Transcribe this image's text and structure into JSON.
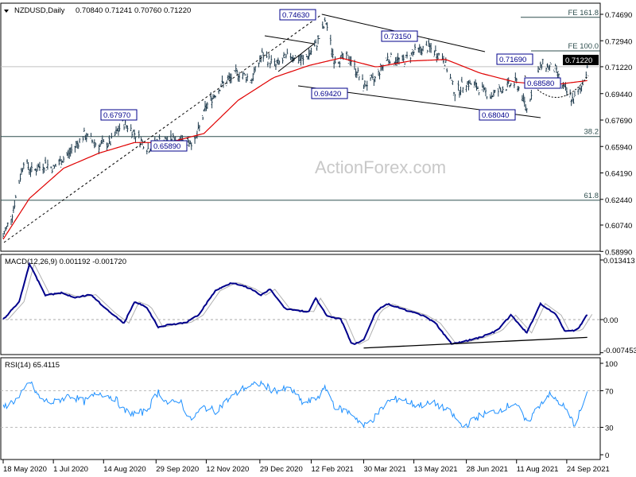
{
  "header": {
    "symbol": "NZDUSD,Daily",
    "ohlc": "0.70840 0.71241 0.70760 0.71220"
  },
  "watermark": "ActionForex.com",
  "chart_data": [
    {
      "type": "ohlc",
      "title": "NZDUSD,Daily",
      "open": 0.7084,
      "high": 0.71241,
      "low": 0.7076,
      "close": [
        [
          "2020-05-18",
          0.6
        ],
        [
          "2020-05-26",
          0.615
        ],
        [
          "2020-06-05",
          0.65
        ],
        [
          "2020-06-12",
          0.643
        ],
        [
          "2020-06-24",
          0.648
        ],
        [
          "2020-07-01",
          0.645
        ],
        [
          "2020-07-15",
          0.655
        ],
        [
          "2020-07-28",
          0.667
        ],
        [
          "2020-08-10",
          0.66
        ],
        [
          "2020-08-20",
          0.662
        ],
        [
          "2020-08-31",
          0.675
        ],
        [
          "2020-09-07",
          0.671
        ],
        [
          "2020-09-22",
          0.658
        ],
        [
          "2020-10-02",
          0.663
        ],
        [
          "2020-10-20",
          0.665
        ],
        [
          "2020-11-02",
          0.662
        ],
        [
          "2020-11-12",
          0.686
        ],
        [
          "2020-11-25",
          0.7
        ],
        [
          "2020-12-10",
          0.708
        ],
        [
          "2020-12-22",
          0.704
        ],
        [
          "2020-12-31",
          0.72
        ],
        [
          "2021-01-12",
          0.713
        ],
        [
          "2021-01-25",
          0.72
        ],
        [
          "2021-02-05",
          0.716
        ],
        [
          "2021-02-16",
          0.726
        ],
        [
          "2021-02-25",
          0.742
        ],
        [
          "2021-03-04",
          0.717
        ],
        [
          "2021-03-18",
          0.718
        ],
        [
          "2021-03-30",
          0.7
        ],
        [
          "2021-04-08",
          0.703
        ],
        [
          "2021-04-20",
          0.718
        ],
        [
          "2021-05-04",
          0.716
        ],
        [
          "2021-05-13",
          0.722
        ],
        [
          "2021-05-26",
          0.725
        ],
        [
          "2021-06-08",
          0.718
        ],
        [
          "2021-06-18",
          0.695
        ],
        [
          "2021-06-28",
          0.702
        ],
        [
          "2021-07-09",
          0.698
        ],
        [
          "2021-07-20",
          0.693
        ],
        [
          "2021-07-30",
          0.698
        ],
        [
          "2021-08-11",
          0.702
        ],
        [
          "2021-08-20",
          0.684
        ],
        [
          "2021-08-27",
          0.704
        ],
        [
          "2021-09-03",
          0.714
        ],
        [
          "2021-09-14",
          0.71
        ],
        [
          "2021-09-22",
          0.697
        ],
        [
          "2021-09-30",
          0.69
        ],
        [
          "2021-10-06",
          0.697
        ],
        [
          "2021-10-12",
          0.7122
        ]
      ],
      "ylim": [
        0.5899,
        0.7469
      ],
      "y_ticks": [
        "0.74690",
        "0.72940",
        "0.71220",
        "0.69440",
        "0.67690",
        "0.65940",
        "0.64190",
        "0.62440",
        "0.60740",
        "0.58990"
      ],
      "y_tick_values": [
        0.7469,
        0.7294,
        0.7122,
        0.6944,
        0.6769,
        0.6594,
        0.6419,
        0.6244,
        0.6074,
        0.5899
      ],
      "current_price_label": "0.71220",
      "x_ticks": [
        "18 May 2020",
        "1 Jul 2020",
        "14 Aug 2020",
        "29 Sep 2020",
        "12 Nov 2020",
        "29 Dec 2020",
        "12 Feb 2021",
        "30 Mar 2021",
        "13 May 2021",
        "28 Jun 2021",
        "11 Aug 2021",
        "24 Sep 2021"
      ],
      "x_tick_dates": [
        "2020-05-18",
        "2020-07-01",
        "2020-08-14",
        "2020-09-29",
        "2020-11-12",
        "2020-12-29",
        "2021-02-12",
        "2021-03-30",
        "2021-05-13",
        "2021-06-28",
        "2021-08-11",
        "2021-09-24"
      ],
      "moving_average": [
        [
          "2020-05-18",
          0.598
        ],
        [
          "2020-06-10",
          0.625
        ],
        [
          "2020-07-10",
          0.645
        ],
        [
          "2020-08-10",
          0.655
        ],
        [
          "2020-09-10",
          0.662
        ],
        [
          "2020-10-10",
          0.662
        ],
        [
          "2020-11-10",
          0.668
        ],
        [
          "2020-12-10",
          0.69
        ],
        [
          "2021-01-10",
          0.705
        ],
        [
          "2021-02-10",
          0.713
        ],
        [
          "2021-03-10",
          0.718
        ],
        [
          "2021-04-10",
          0.712
        ],
        [
          "2021-05-10",
          0.716
        ],
        [
          "2021-06-10",
          0.717
        ],
        [
          "2021-07-10",
          0.708
        ],
        [
          "2021-08-10",
          0.702
        ],
        [
          "2021-09-10",
          0.7
        ],
        [
          "2021-10-12",
          0.703
        ]
      ],
      "annotations": [
        {
          "label": "0.74630",
          "date": "2021-02-25",
          "value": 0.7463
        },
        {
          "label": "0.73150",
          "date": "2021-05-26",
          "value": 0.7315
        },
        {
          "label": "0.71690",
          "date": "2021-09-02",
          "value": 0.7169
        },
        {
          "label": "0.69420",
          "date": "2021-03-30",
          "value": 0.6942
        },
        {
          "label": "0.68040",
          "date": "2021-08-20",
          "value": 0.6804
        },
        {
          "label": "0.68580",
          "date": "2021-09-30",
          "value": 0.6858
        },
        {
          "label": "0.67970",
          "date": "2020-08-31",
          "value": 0.6797
        },
        {
          "label": "0.65890",
          "date": "2020-09-25",
          "value": 0.6589
        }
      ],
      "levels": [
        {
          "label": "FE 161.8",
          "value": 0.7449
        },
        {
          "label": "FE 100.0",
          "value": 0.7227
        },
        {
          "label": "38.2",
          "value": 0.666
        },
        {
          "label": "61.8",
          "value": 0.6238
        }
      ]
    },
    {
      "type": "line",
      "title": "MACD(12,26,9) 0.001192 -0.001720",
      "ylim": [
        -0.007453,
        0.013413
      ],
      "y_ticks": [
        "0.013413",
        "0.00",
        "-0.007453"
      ],
      "y_tick_values": [
        0.013413,
        0,
        -0.007453
      ],
      "macd": [
        [
          "2020-05-18",
          0
        ],
        [
          "2020-06-01",
          0.004
        ],
        [
          "2020-06-10",
          0.0125
        ],
        [
          "2020-06-24",
          0.0055
        ],
        [
          "2020-07-08",
          0.006
        ],
        [
          "2020-07-20",
          0.005
        ],
        [
          "2020-08-03",
          0.0056
        ],
        [
          "2020-08-20",
          0.0015
        ],
        [
          "2020-09-01",
          -0.0008
        ],
        [
          "2020-09-10",
          0.004
        ],
        [
          "2020-09-20",
          0.003
        ],
        [
          "2020-10-01",
          -0.0017
        ],
        [
          "2020-10-10",
          -0.0012
        ],
        [
          "2020-10-25",
          -0.0007
        ],
        [
          "2020-11-05",
          0.001
        ],
        [
          "2020-11-20",
          0.0065
        ],
        [
          "2020-12-05",
          0.0084
        ],
        [
          "2020-12-20",
          0.007
        ],
        [
          "2020-12-30",
          0.0055
        ],
        [
          "2021-01-07",
          0.0068
        ],
        [
          "2021-01-20",
          0.0025
        ],
        [
          "2021-02-01",
          0.002
        ],
        [
          "2021-02-10",
          0.0018
        ],
        [
          "2021-02-16",
          0.0048
        ],
        [
          "2021-02-26",
          0.0007
        ],
        [
          "2021-03-10",
          0.0001
        ],
        [
          "2021-03-20",
          -0.0058
        ],
        [
          "2021-03-30",
          -0.0045
        ],
        [
          "2021-04-10",
          0.002
        ],
        [
          "2021-04-20",
          0.0035
        ],
        [
          "2021-05-05",
          0.0022
        ],
        [
          "2021-05-20",
          0.001
        ],
        [
          "2021-06-01",
          -0.0008
        ],
        [
          "2021-06-15",
          -0.0055
        ],
        [
          "2021-06-25",
          -0.005
        ],
        [
          "2021-07-10",
          -0.004
        ],
        [
          "2021-07-25",
          -0.0025
        ],
        [
          "2021-08-06",
          0.001
        ],
        [
          "2021-08-20",
          -0.003
        ],
        [
          "2021-09-01",
          0.0036
        ],
        [
          "2021-09-15",
          0.001
        ],
        [
          "2021-09-22",
          -0.0025
        ],
        [
          "2021-10-03",
          -0.0025
        ],
        [
          "2021-10-12",
          0.001192
        ]
      ],
      "signal": "-0.001720",
      "trendline": [
        [
          "2021-03-30",
          -0.0064
        ],
        [
          "2021-10-12",
          -0.004
        ]
      ]
    },
    {
      "type": "line",
      "title": "RSI(14) 65.4115",
      "ylim": [
        0,
        100
      ],
      "y_ticks": [
        "100",
        "70",
        "30",
        "0"
      ],
      "y_tick_values": [
        100,
        70,
        30,
        0
      ],
      "rsi": [
        [
          "2020-05-18",
          52
        ],
        [
          "2020-06-01",
          62
        ],
        [
          "2020-06-10",
          80
        ],
        [
          "2020-06-20",
          60
        ],
        [
          "2020-07-01",
          57
        ],
        [
          "2020-07-15",
          65
        ],
        [
          "2020-07-28",
          58
        ],
        [
          "2020-08-10",
          68
        ],
        [
          "2020-08-24",
          62
        ],
        [
          "2020-09-01",
          48
        ],
        [
          "2020-09-10",
          45
        ],
        [
          "2020-09-20",
          47
        ],
        [
          "2020-10-01",
          69
        ],
        [
          "2020-10-10",
          55
        ],
        [
          "2020-10-20",
          60
        ],
        [
          "2020-10-29",
          38
        ],
        [
          "2020-11-10",
          52
        ],
        [
          "2020-11-20",
          48
        ],
        [
          "2020-12-01",
          60
        ],
        [
          "2020-12-15",
          73
        ],
        [
          "2020-12-30",
          78
        ],
        [
          "2021-01-10",
          70
        ],
        [
          "2021-01-25",
          72
        ],
        [
          "2021-02-05",
          56
        ],
        [
          "2021-02-15",
          60
        ],
        [
          "2021-02-25",
          73
        ],
        [
          "2021-03-05",
          52
        ],
        [
          "2021-03-20",
          45
        ],
        [
          "2021-03-30",
          31
        ],
        [
          "2021-04-08",
          40
        ],
        [
          "2021-04-20",
          58
        ],
        [
          "2021-05-01",
          62
        ],
        [
          "2021-05-15",
          54
        ],
        [
          "2021-06-01",
          56
        ],
        [
          "2021-06-15",
          45
        ],
        [
          "2021-06-25",
          30
        ],
        [
          "2021-07-10",
          43
        ],
        [
          "2021-07-25",
          48
        ],
        [
          "2021-08-10",
          57
        ],
        [
          "2021-08-20",
          34
        ],
        [
          "2021-08-30",
          53
        ],
        [
          "2021-09-08",
          66
        ],
        [
          "2021-09-20",
          55
        ],
        [
          "2021-10-01",
          33
        ],
        [
          "2021-10-06",
          48
        ],
        [
          "2021-10-12",
          65.4
        ]
      ]
    }
  ]
}
